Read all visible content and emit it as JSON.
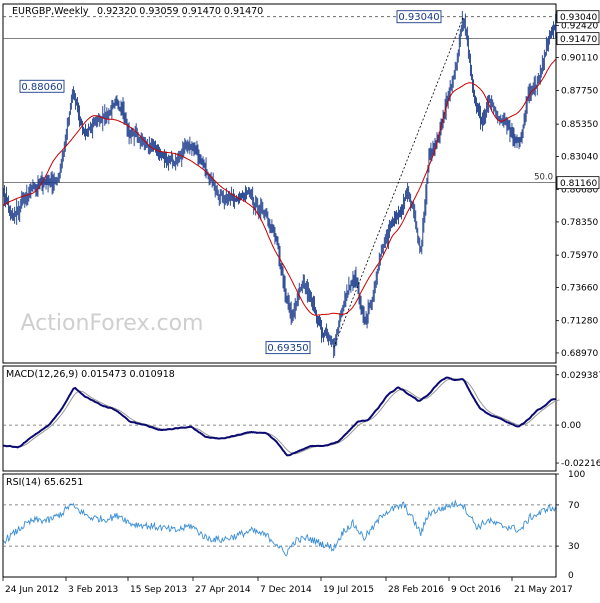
{
  "chart_data": [
    {
      "type": "ohlc",
      "panel": "price",
      "title": "EURGBP,Weekly",
      "ohlc_readout": "0.92320 0.93059 0.91470 0.91470",
      "watermark": "ActionForex.com",
      "ylim": [
        0.6825,
        0.9395
      ],
      "y_ticks": [
        "0.92420",
        "0.90110",
        "0.87750",
        "0.85350",
        "0.83040",
        "0.80680",
        "0.78350",
        "0.75970",
        "0.73660",
        "0.71280",
        "0.68970"
      ],
      "price_labels": [
        {
          "label": "0.93040",
          "value": 0.9304
        },
        {
          "label": "0.91470",
          "value": 0.9147
        },
        {
          "label": "0.81160",
          "value": 0.8116
        }
      ],
      "annotations": [
        {
          "text": "0.88060",
          "value": 0.8806,
          "bar": 6
        },
        {
          "text": "0.69350",
          "value": 0.6935,
          "bar": 326
        },
        {
          "text": "0.93040",
          "value": 0.9304,
          "bar": 454
        }
      ],
      "fib_level": {
        "label": "50.0",
        "value": 0.8116
      },
      "trendline": [
        {
          "bar": 326,
          "value": 0.6935
        },
        {
          "bar": 454,
          "value": 0.9304
        }
      ],
      "moving_average_color": "#cc0000",
      "bar_color": "#1a3a8a",
      "key_points": [
        [
          0,
          0.805
        ],
        [
          8,
          0.785
        ],
        [
          18,
          0.797
        ],
        [
          30,
          0.81
        ],
        [
          45,
          0.812
        ],
        [
          55,
          0.815
        ],
        [
          62,
          0.85
        ],
        [
          68,
          0.875
        ],
        [
          74,
          0.862
        ],
        [
          80,
          0.845
        ],
        [
          90,
          0.855
        ],
        [
          100,
          0.858
        ],
        [
          112,
          0.87
        ],
        [
          118,
          0.86
        ],
        [
          125,
          0.846
        ],
        [
          135,
          0.843
        ],
        [
          150,
          0.835
        ],
        [
          160,
          0.83
        ],
        [
          170,
          0.825
        ],
        [
          180,
          0.838
        ],
        [
          190,
          0.835
        ],
        [
          200,
          0.82
        ],
        [
          210,
          0.805
        ],
        [
          220,
          0.8
        ],
        [
          230,
          0.798
        ],
        [
          240,
          0.805
        ],
        [
          250,
          0.795
        ],
        [
          262,
          0.785
        ],
        [
          270,
          0.77
        ],
        [
          278,
          0.732
        ],
        [
          285,
          0.715
        ],
        [
          295,
          0.74
        ],
        [
          305,
          0.725
        ],
        [
          315,
          0.705
        ],
        [
          326,
          0.6935
        ],
        [
          334,
          0.72
        ],
        [
          340,
          0.735
        ],
        [
          348,
          0.744
        ],
        [
          356,
          0.71
        ],
        [
          364,
          0.73
        ],
        [
          372,
          0.76
        ],
        [
          380,
          0.778
        ],
        [
          390,
          0.79
        ],
        [
          398,
          0.805
        ],
        [
          404,
          0.795
        ],
        [
          412,
          0.76
        ],
        [
          420,
          0.83
        ],
        [
          430,
          0.845
        ],
        [
          440,
          0.875
        ],
        [
          448,
          0.9
        ],
        [
          452,
          0.925
        ],
        [
          454,
          0.9304
        ],
        [
          460,
          0.9
        ],
        [
          466,
          0.865
        ],
        [
          472,
          0.855
        ],
        [
          480,
          0.87
        ],
        [
          488,
          0.86
        ],
        [
          496,
          0.855
        ],
        [
          504,
          0.845
        ],
        [
          510,
          0.838
        ],
        [
          518,
          0.875
        ],
        [
          528,
          0.885
        ],
        [
          534,
          0.9
        ],
        [
          538,
          0.915
        ],
        [
          542,
          0.922
        ]
      ]
    },
    {
      "type": "line",
      "panel": "macd",
      "label": "MACD(12,26,9) 0.015473 0.010918",
      "ylim": [
        -0.0268,
        0.0345
      ],
      "y_ticks": [
        "0.029387",
        "0.00",
        "-0.022161"
      ],
      "zero_line": 0,
      "macd_color": "#0a0a70",
      "signal_color": "#999999",
      "key_points": [
        [
          0,
          -0.012
        ],
        [
          15,
          -0.013
        ],
        [
          30,
          -0.006
        ],
        [
          45,
          0.0
        ],
        [
          58,
          0.01
        ],
        [
          70,
          0.022
        ],
        [
          80,
          0.017
        ],
        [
          95,
          0.012
        ],
        [
          110,
          0.009
        ],
        [
          125,
          0.002
        ],
        [
          140,
          0.0
        ],
        [
          155,
          -0.003
        ],
        [
          170,
          -0.002
        ],
        [
          185,
          -0.001
        ],
        [
          200,
          -0.007
        ],
        [
          215,
          -0.008
        ],
        [
          230,
          -0.006
        ],
        [
          245,
          -0.004
        ],
        [
          260,
          -0.005
        ],
        [
          270,
          -0.01
        ],
        [
          280,
          -0.018
        ],
        [
          292,
          -0.015
        ],
        [
          305,
          -0.012
        ],
        [
          318,
          -0.012
        ],
        [
          330,
          -0.01
        ],
        [
          340,
          -0.004
        ],
        [
          350,
          0.002
        ],
        [
          360,
          0.003
        ],
        [
          370,
          0.01
        ],
        [
          380,
          0.018
        ],
        [
          390,
          0.022
        ],
        [
          400,
          0.018
        ],
        [
          410,
          0.014
        ],
        [
          420,
          0.018
        ],
        [
          430,
          0.025
        ],
        [
          438,
          0.028
        ],
        [
          446,
          0.026
        ],
        [
          454,
          0.027
        ],
        [
          462,
          0.018
        ],
        [
          470,
          0.01
        ],
        [
          480,
          0.006
        ],
        [
          490,
          0.004
        ],
        [
          500,
          0.001
        ],
        [
          508,
          -0.001
        ],
        [
          516,
          0.002
        ],
        [
          526,
          0.008
        ],
        [
          536,
          0.012
        ],
        [
          542,
          0.015
        ]
      ]
    },
    {
      "type": "line",
      "panel": "rsi",
      "label": "RSI(14) 65.6251",
      "ylim": [
        0,
        100
      ],
      "y_ticks": [
        "100",
        "70",
        "30",
        "0"
      ],
      "levels": [
        70,
        30
      ],
      "line_color": "#3b8fd6",
      "key_points": [
        [
          0,
          35
        ],
        [
          10,
          42
        ],
        [
          20,
          50
        ],
        [
          30,
          55
        ],
        [
          45,
          55
        ],
        [
          58,
          62
        ],
        [
          66,
          70
        ],
        [
          74,
          65
        ],
        [
          85,
          58
        ],
        [
          100,
          56
        ],
        [
          115,
          60
        ],
        [
          125,
          52
        ],
        [
          140,
          50
        ],
        [
          155,
          48
        ],
        [
          170,
          45
        ],
        [
          185,
          50
        ],
        [
          200,
          38
        ],
        [
          215,
          36
        ],
        [
          230,
          40
        ],
        [
          245,
          45
        ],
        [
          260,
          40
        ],
        [
          270,
          32
        ],
        [
          278,
          22
        ],
        [
          288,
          35
        ],
        [
          300,
          38
        ],
        [
          315,
          32
        ],
        [
          326,
          28
        ],
        [
          336,
          45
        ],
        [
          345,
          52
        ],
        [
          356,
          38
        ],
        [
          365,
          48
        ],
        [
          375,
          62
        ],
        [
          385,
          66
        ],
        [
          395,
          70
        ],
        [
          405,
          55
        ],
        [
          412,
          42
        ],
        [
          420,
          62
        ],
        [
          432,
          66
        ],
        [
          442,
          70
        ],
        [
          452,
          72
        ],
        [
          460,
          60
        ],
        [
          468,
          48
        ],
        [
          478,
          55
        ],
        [
          490,
          50
        ],
        [
          502,
          48
        ],
        [
          510,
          45
        ],
        [
          520,
          58
        ],
        [
          530,
          62
        ],
        [
          538,
          68
        ],
        [
          542,
          65.6
        ]
      ]
    }
  ],
  "x_axis": {
    "labels": [
      "24 Jun 2012",
      "3 Feb 2013",
      "15 Sep 2013",
      "27 Apr 2014",
      "7 Dec 2014",
      "19 Jul 2015",
      "28 Feb 2016",
      "9 Oct 2016",
      "21 May 2017"
    ]
  }
}
